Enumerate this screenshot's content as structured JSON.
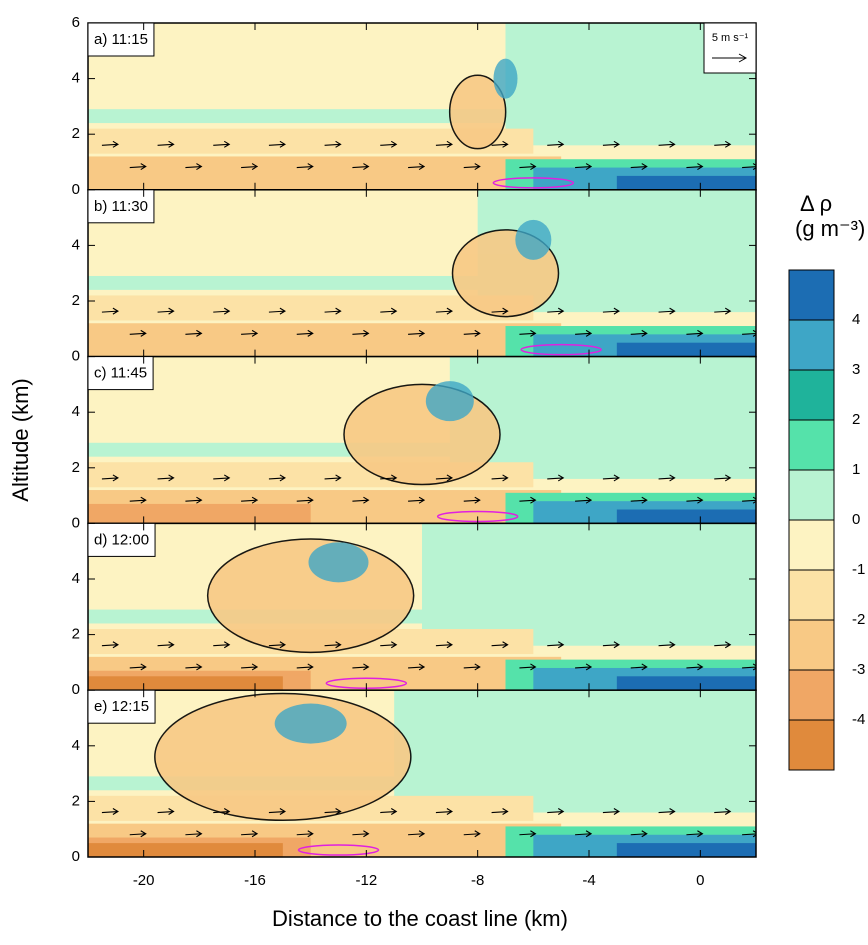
{
  "chart_data": {
    "type": "contour",
    "xlabel": "Distance to the coast line (km)",
    "ylabel": "Altitude (km)",
    "xlim": [
      -22,
      2
    ],
    "xticks": [
      -20,
      -16,
      -12,
      -8,
      -4,
      0
    ],
    "ylim": [
      0,
      6
    ],
    "yticks": [
      0,
      2,
      4,
      6
    ],
    "panels": [
      "a) 11:15",
      "b) 11:30",
      "c) 11:45",
      "d) 12:00",
      "e) 12:15"
    ],
    "reference_vector": "5 m s⁻¹",
    "colorbar": {
      "title": [
        "Δ ρ",
        "(g m⁻³)"
      ],
      "levels": [
        4,
        3,
        2,
        1,
        0,
        -1,
        -2,
        -3,
        -4
      ],
      "colors": [
        "#1c6db3",
        "#3ea6c6",
        "#1fb39b",
        "#55e2aa",
        "#b8f3d2",
        "#fdf3c2",
        "#fce2a6",
        "#f8c985",
        "#f0a765",
        "#e08a3c"
      ]
    }
  }
}
